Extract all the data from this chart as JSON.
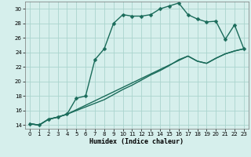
{
  "xlabel": "Humidex (Indice chaleur)",
  "xlim": [
    -0.5,
    23.5
  ],
  "ylim": [
    13.5,
    31.0
  ],
  "xticks": [
    0,
    1,
    2,
    3,
    4,
    5,
    6,
    7,
    8,
    9,
    10,
    11,
    12,
    13,
    14,
    15,
    16,
    17,
    18,
    19,
    20,
    21,
    22,
    23
  ],
  "yticks": [
    14,
    16,
    18,
    20,
    22,
    24,
    26,
    28,
    30
  ],
  "bg_color": "#d6efec",
  "grid_color": "#aad4ce",
  "line_color": "#1a6b5a",
  "curve1_x": [
    0,
    1,
    2,
    3,
    4,
    5,
    6,
    7,
    8,
    9,
    10,
    11,
    12,
    13,
    14,
    15,
    16,
    17,
    18,
    19,
    20,
    21,
    22,
    23
  ],
  "curve1_y": [
    14.2,
    14.0,
    14.8,
    15.1,
    15.5,
    17.7,
    18.0,
    23.0,
    24.5,
    28.0,
    29.2,
    29.0,
    29.0,
    29.2,
    30.0,
    30.4,
    30.8,
    29.2,
    28.6,
    28.2,
    28.3,
    25.8,
    27.8,
    24.5
  ],
  "curve2_x": [
    0,
    1,
    2,
    3,
    4,
    5,
    6,
    7,
    8,
    9,
    10,
    11,
    12,
    13,
    14,
    15,
    16,
    17,
    18,
    19,
    20,
    21,
    22,
    23
  ],
  "curve2_y": [
    14.2,
    14.0,
    14.8,
    15.1,
    15.5,
    16.0,
    16.5,
    17.0,
    17.5,
    18.2,
    18.9,
    19.5,
    20.2,
    20.9,
    21.5,
    22.2,
    23.0,
    23.5,
    22.8,
    22.5,
    23.2,
    23.8,
    24.2,
    24.5
  ],
  "curve3_x": [
    0,
    1,
    2,
    3,
    4,
    17,
    18,
    19,
    20,
    21,
    22,
    23
  ],
  "curve3_y": [
    14.2,
    14.0,
    14.8,
    15.1,
    15.5,
    23.5,
    22.8,
    22.5,
    23.2,
    23.8,
    24.2,
    24.5
  ],
  "marker": "D",
  "markersize": 2.5,
  "linewidth": 1.0
}
